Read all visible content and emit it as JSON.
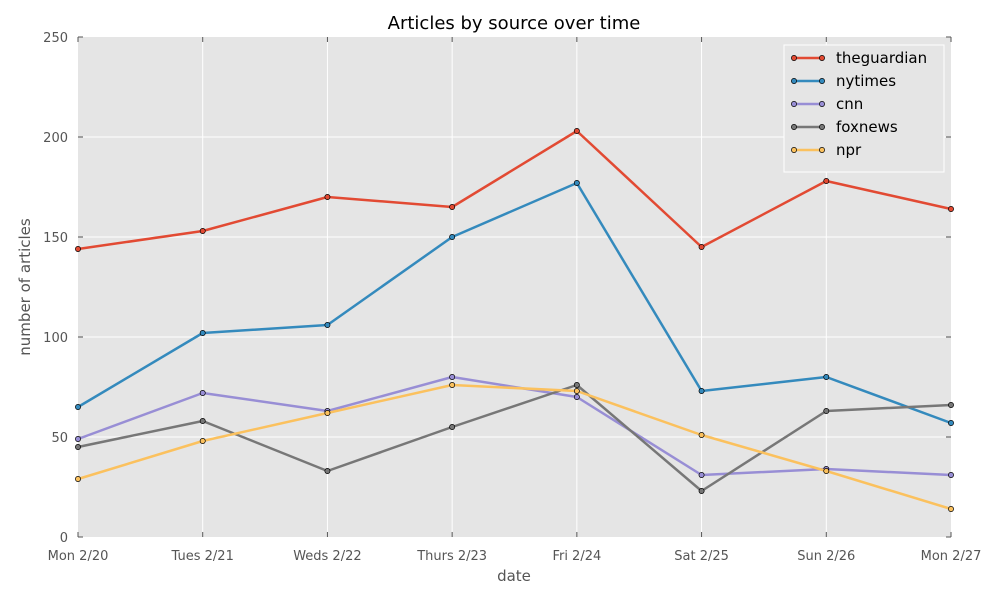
{
  "chart_data": {
    "type": "line",
    "title": "Articles by source over time",
    "xlabel": "date",
    "ylabel": "number of articles",
    "categories": [
      "Mon 2/20",
      "Tues 2/21",
      "Weds 2/22",
      "Thurs 2/23",
      "Fri 2/24",
      "Sat 2/25",
      "Sun 2/26",
      "Mon 2/27"
    ],
    "ylim": [
      0,
      250
    ],
    "yticks": [
      0,
      50,
      100,
      150,
      200,
      250
    ],
    "grid": true,
    "legend_position": "top-right",
    "series": [
      {
        "name": "theguardian",
        "color": "#E24A33",
        "values": [
          144,
          153,
          170,
          165,
          203,
          145,
          178,
          164
        ]
      },
      {
        "name": "nytimes",
        "color": "#348ABD",
        "values": [
          65,
          102,
          106,
          150,
          177,
          73,
          80,
          57
        ]
      },
      {
        "name": "cnn",
        "color": "#988ED5",
        "values": [
          49,
          72,
          63,
          80,
          70,
          31,
          34,
          31
        ]
      },
      {
        "name": "foxnews",
        "color": "#777777",
        "values": [
          45,
          58,
          33,
          55,
          76,
          23,
          63,
          66
        ]
      },
      {
        "name": "npr",
        "color": "#FBC15E",
        "values": [
          29,
          48,
          62,
          76,
          73,
          51,
          33,
          14
        ]
      }
    ]
  }
}
